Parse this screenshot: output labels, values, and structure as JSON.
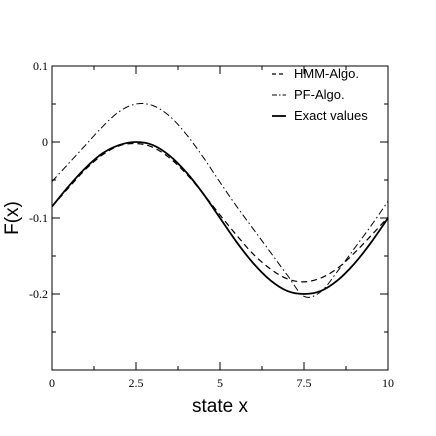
{
  "chart_data": {
    "type": "line",
    "title": "",
    "xlabel": "state x",
    "ylabel": "F(x)",
    "xlim": [
      0,
      10
    ],
    "ylim": [
      -0.3,
      0.1
    ],
    "x_ticks": [
      0,
      2.5,
      5,
      7.5,
      10
    ],
    "x_tick_labels": [
      "0",
      "2.5",
      "5",
      "7.5",
      "10"
    ],
    "y_ticks": [
      0.1,
      0,
      -0.1,
      -0.2
    ],
    "y_tick_labels": [
      "0.1",
      "0",
      "-0.1",
      "-0.2"
    ],
    "grid": false,
    "legend_position": "top-right",
    "x": [
      0,
      0.5,
      1,
      1.5,
      2,
      2.5,
      3,
      3.5,
      4,
      4.5,
      5,
      5.5,
      6,
      6.5,
      7,
      7.5,
      8,
      8.5,
      9,
      9.5,
      10
    ],
    "series": [
      {
        "name": "HMM-Algo.",
        "dash": "dashed",
        "color": "#000000",
        "values": [
          -0.085,
          -0.06,
          -0.036,
          -0.017,
          -0.005,
          -0.002,
          -0.007,
          -0.021,
          -0.042,
          -0.068,
          -0.096,
          -0.123,
          -0.148,
          -0.167,
          -0.18,
          -0.184,
          -0.179,
          -0.166,
          -0.146,
          -0.123,
          -0.099
        ]
      },
      {
        "name": "PF-Algo.",
        "dash": "dashdot",
        "color": "#000000",
        "values": [
          -0.052,
          -0.028,
          -0.004,
          0.02,
          0.04,
          0.05,
          0.048,
          0.034,
          0.01,
          -0.02,
          -0.053,
          -0.085,
          -0.115,
          -0.145,
          -0.175,
          -0.203,
          -0.197,
          -0.17,
          -0.14,
          -0.11,
          -0.078
        ]
      },
      {
        "name": "Exact values",
        "dash": "solid",
        "color": "#000000",
        "values": [
          -0.085,
          -0.058,
          -0.034,
          -0.015,
          -0.004,
          0.0,
          -0.004,
          -0.018,
          -0.04,
          -0.068,
          -0.1,
          -0.132,
          -0.16,
          -0.182,
          -0.196,
          -0.2,
          -0.196,
          -0.182,
          -0.16,
          -0.132,
          -0.1
        ]
      }
    ]
  }
}
